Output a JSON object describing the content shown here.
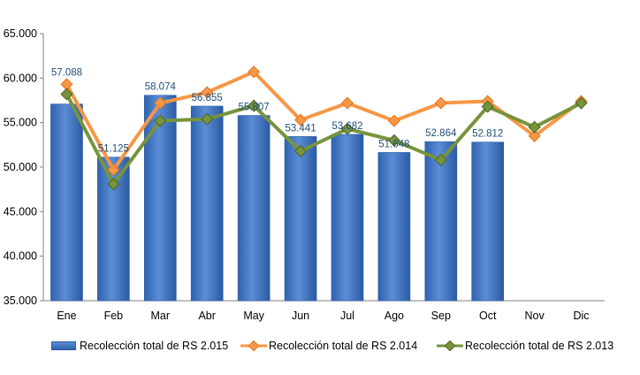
{
  "colors": {
    "bar": "#3f78c8",
    "bar_dark": "#2a5aa3",
    "series_2014": "#f79646",
    "series_2013": "#77933c",
    "axis": "#808080",
    "gridline": "#d9d9d9",
    "data_label": "#1f4e79"
  },
  "legend": {
    "s2015": "Recolección total de RS 2.015",
    "s2014": "Recolección total de RS 2.014",
    "s2013": "Recolección total de RS 2.013"
  },
  "chart_data": {
    "type": "bar",
    "categories": [
      "Ene",
      "Feb",
      "Mar",
      "Abr",
      "May",
      "Jun",
      "Jul",
      "Ago",
      "Sep",
      "Oct",
      "Nov",
      "Dic"
    ],
    "ylim": [
      35000,
      65000
    ],
    "ytick_values": [
      35000,
      40000,
      45000,
      50000,
      55000,
      60000,
      65000
    ],
    "ytick_labels": [
      "35.000",
      "40.000",
      "45.000",
      "50.000",
      "55.000",
      "60.000",
      "65.000"
    ],
    "grid": false,
    "legend_position": "bottom",
    "series": [
      {
        "name": "Recolección total de RS 2.015",
        "type": "bar",
        "values": [
          57088,
          51125,
          58074,
          56855,
          55807,
          53441,
          53682,
          51648,
          52864,
          52812,
          null,
          null
        ],
        "labels": [
          "57.088",
          "51.125",
          "58.074",
          "56.855",
          "55.807",
          "53.441",
          "53.682",
          "51.648",
          "52.864",
          "52.812",
          "",
          ""
        ]
      },
      {
        "name": "Recolección total de RS 2.014",
        "type": "line",
        "values": [
          59300,
          49700,
          57200,
          58400,
          60700,
          55300,
          57200,
          55200,
          57200,
          57400,
          53500,
          57400
        ]
      },
      {
        "name": "Recolección total de RS 2.013",
        "type": "line",
        "values": [
          58200,
          48100,
          55200,
          55400,
          56900,
          51800,
          54300,
          53000,
          50800,
          56800,
          54500,
          57200
        ]
      }
    ]
  }
}
